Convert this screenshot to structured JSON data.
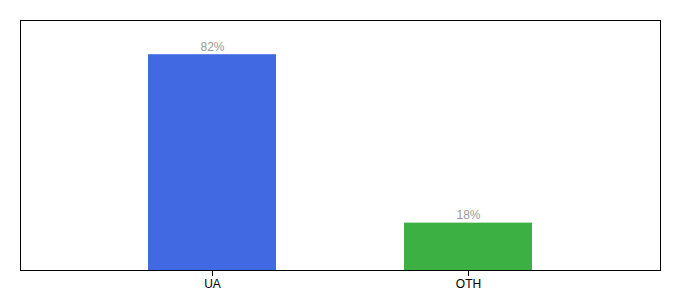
{
  "chart_data": {
    "type": "bar",
    "categories": [
      "UA",
      "OTH"
    ],
    "values": [
      82,
      18
    ],
    "value_labels": [
      "82%",
      "18%"
    ],
    "colors": [
      "#4169E1",
      "#3CB043"
    ],
    "ylim": [
      0,
      95
    ],
    "data_labels": true,
    "tick_labels": "x"
  }
}
